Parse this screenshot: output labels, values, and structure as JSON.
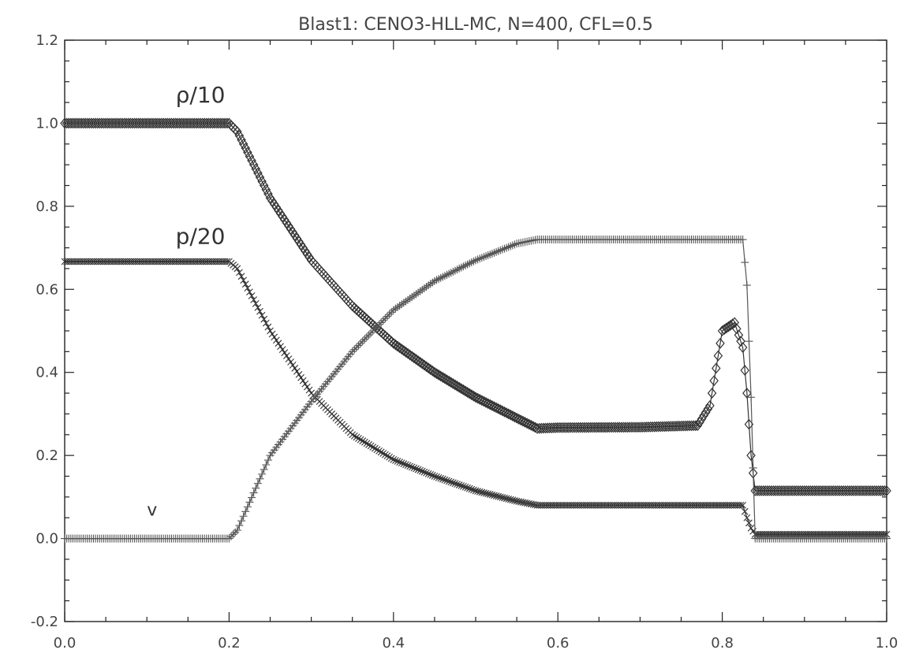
{
  "chart_data": {
    "type": "scatter",
    "title": "Blast1: CENO3-HLL-MC, N=400, CFL=0.5",
    "xlabel": "",
    "ylabel": "",
    "xlim": [
      0.0,
      1.0
    ],
    "ylim": [
      -0.2,
      1.2
    ],
    "x_ticks": [
      "0.0",
      "0.2",
      "0.4",
      "0.6",
      "0.8",
      "1.0"
    ],
    "y_ticks": [
      "-0.2",
      "0.0",
      "0.2",
      "0.4",
      "0.6",
      "0.8",
      "1.0",
      "1.2"
    ],
    "annotations": [
      {
        "text": "ρ/10",
        "x": 0.135,
        "y": 1.05
      },
      {
        "text": "p/20",
        "x": 0.135,
        "y": 0.71
      },
      {
        "text": "v",
        "x": 0.1,
        "y": 0.055
      }
    ],
    "series": [
      {
        "label": "ρ/10",
        "marker": "diamond",
        "color": "#333333",
        "x": [
          0.0,
          0.1,
          0.2,
          0.21,
          0.25,
          0.3,
          0.35,
          0.4,
          0.45,
          0.5,
          0.55,
          0.575,
          0.6,
          0.7,
          0.77,
          0.785,
          0.8,
          0.815,
          0.825,
          0.83,
          0.835,
          0.84,
          0.9,
          1.0
        ],
        "y": [
          1.0,
          1.0,
          1.0,
          0.98,
          0.82,
          0.67,
          0.56,
          0.47,
          0.4,
          0.34,
          0.29,
          0.265,
          0.267,
          0.268,
          0.272,
          0.32,
          0.5,
          0.52,
          0.46,
          0.35,
          0.2,
          0.115,
          0.115,
          0.115
        ]
      },
      {
        "label": "p/20",
        "marker": "x",
        "color": "#333333",
        "x": [
          0.0,
          0.1,
          0.2,
          0.21,
          0.25,
          0.3,
          0.35,
          0.4,
          0.45,
          0.5,
          0.55,
          0.575,
          0.6,
          0.7,
          0.8,
          0.825,
          0.83,
          0.835,
          0.84,
          0.9,
          1.0
        ],
        "y": [
          0.667,
          0.667,
          0.667,
          0.65,
          0.5,
          0.35,
          0.25,
          0.19,
          0.15,
          0.115,
          0.09,
          0.08,
          0.08,
          0.08,
          0.08,
          0.08,
          0.05,
          0.025,
          0.01,
          0.01,
          0.01
        ]
      },
      {
        "label": "v",
        "marker": "plus",
        "color": "#555555",
        "x": [
          0.0,
          0.1,
          0.2,
          0.21,
          0.25,
          0.3,
          0.35,
          0.4,
          0.45,
          0.5,
          0.55,
          0.575,
          0.6,
          0.7,
          0.8,
          0.825,
          0.83,
          0.835,
          0.84,
          0.9,
          1.0
        ],
        "y": [
          0.0,
          0.0,
          0.0,
          0.02,
          0.2,
          0.33,
          0.45,
          0.55,
          0.62,
          0.67,
          0.71,
          0.72,
          0.72,
          0.72,
          0.72,
          0.72,
          0.61,
          0.34,
          0.0,
          0.0,
          0.0
        ]
      }
    ]
  }
}
